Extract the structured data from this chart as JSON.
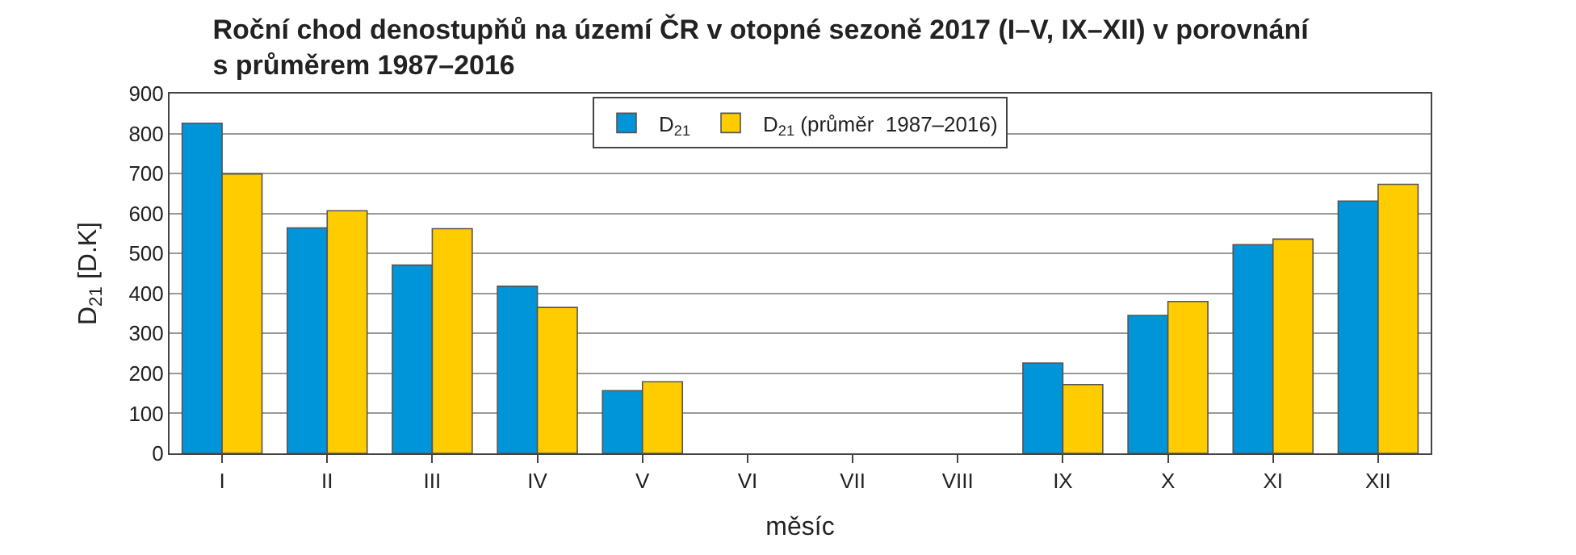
{
  "chart_data": {
    "type": "bar",
    "title": "Roční chod denostupňů na území ČR v otopné sezoně 2017 (I–V, IX–XII) v porovnání\ns průměrem 1987–2016",
    "xlabel": "měsíc",
    "ylabel": "D$_{21}$ [D.K]",
    "categories": [
      "I",
      "II",
      "III",
      "IV",
      "V",
      "VI",
      "VII",
      "VIII",
      "IX",
      "X",
      "XI",
      "XII"
    ],
    "series": [
      {
        "name": "D$_{21}$",
        "color": "#0095d9",
        "values": [
          826,
          564,
          471,
          418,
          157,
          null,
          null,
          null,
          226,
          345,
          522,
          631
        ]
      },
      {
        "name": "D$_{21}$ (průměr  1987–2016)",
        "color": "#ffcc00",
        "values": [
          699,
          607,
          562,
          365,
          179,
          null,
          null,
          null,
          172,
          380,
          536,
          673
        ]
      }
    ],
    "ylim": [
      0,
      900
    ],
    "yticks": [
      0,
      100,
      200,
      300,
      400,
      500,
      600,
      700,
      800,
      900
    ],
    "grid": "y",
    "legend": "top"
  }
}
